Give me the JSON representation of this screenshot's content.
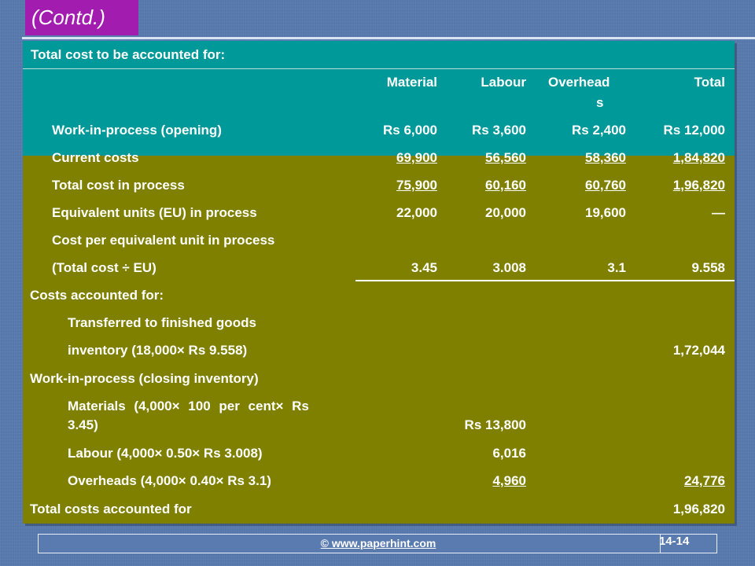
{
  "slide": {
    "title": "(Contd.)",
    "footer_link": "© www.paperhint.com",
    "page_number": "14-14"
  },
  "table": {
    "header": "Total cost to be accounted for:",
    "columns": [
      "Material",
      "Labour",
      "Overhead",
      "s",
      "Total"
    ],
    "rows": [
      {
        "label": "Work-in-process (opening)",
        "material": "Rs 6,000",
        "labour": "Rs 3,600",
        "overheads": "Rs 2,400",
        "total": "Rs 12,000"
      },
      {
        "label": "Current costs",
        "material": "69,900",
        "labour": "56,560",
        "overheads": "58,360",
        "total": "1,84,820"
      },
      {
        "label": "Total cost in process",
        "material": "75,900",
        "labour": "60,160",
        "overheads": "60,760",
        "total": "1,96,820"
      },
      {
        "label": "Equivalent units (EU) in process",
        "material": "22,000",
        "labour": "20,000",
        "overheads": "19,600",
        "total": "—"
      },
      {
        "label": "Cost per equivalent unit in process"
      },
      {
        "label": "(Total cost ÷ EU)",
        "material": "3.45",
        "labour": "3.008",
        "overheads": "3.1",
        "total": "9.558"
      }
    ],
    "accounted": {
      "heading": "Costs accounted for:",
      "transferred_line1": "Transferred to finished goods",
      "transferred_line2": "inventory (18,000× Rs 9.558)",
      "transferred_total": "1,72,044",
      "wip_heading": "Work-in-process (closing inventory)",
      "materials_line1": "Materials (4,000× 100 per cent× Rs",
      "materials_line2": "3.45)",
      "materials_value": "Rs 13,800",
      "labour_label": "Labour (4,000× 0.50× Rs 3.008)",
      "labour_value": "6,016",
      "overheads_label": "Overheads (4,000× 0.40× Rs 3.1)",
      "overheads_value": "4,960",
      "overheads_total": "24,776",
      "final_label": "Total costs accounted for",
      "final_total": "1,96,820"
    }
  }
}
